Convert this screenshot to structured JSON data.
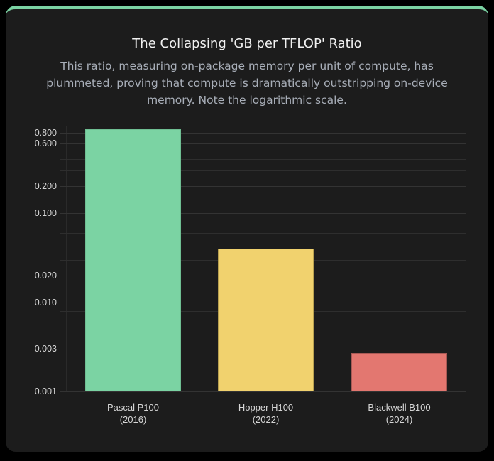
{
  "card": {
    "title": "The Collapsing 'GB per TFLOP' Ratio",
    "subtitle": "This ratio, measuring on-package memory per unit of compute, has plummeted, proving that compute is dramatically outstripping on-device memory. Note the logarithmic scale.",
    "accent_color": "#7bd3a3"
  },
  "y_ticks": [
    "0.800",
    "0.600",
    "0.200",
    "0.100",
    "0.020",
    "0.010",
    "0.003",
    "0.001"
  ],
  "x_labels": [
    {
      "name": "Pascal P100",
      "year": "(2016)"
    },
    {
      "name": "Hopper H100",
      "year": "(2022)"
    },
    {
      "name": "Blackwell B100",
      "year": "(2024)"
    }
  ],
  "chart_data": {
    "type": "bar",
    "title": "The Collapsing 'GB per TFLOP' Ratio",
    "subtitle": "This ratio, measuring on-package memory per unit of compute, has plummeted, proving that compute is dramatically outstripping on-device memory. Note the logarithmic scale.",
    "categories": [
      "Pascal P100 (2016)",
      "Hopper H100 (2022)",
      "Blackwell B100 (2024)"
    ],
    "values": [
      0.87,
      0.04,
      0.0027
    ],
    "colors": [
      "#7bd3a3",
      "#f1d26e",
      "#e37770"
    ],
    "xlabel": "",
    "ylabel": "",
    "yscale": "log",
    "ylim": [
      0.001,
      1.0
    ],
    "yticks": [
      0.8,
      0.6,
      0.2,
      0.1,
      0.02,
      0.01,
      0.003,
      0.001
    ],
    "grid": true,
    "legend": "none"
  }
}
